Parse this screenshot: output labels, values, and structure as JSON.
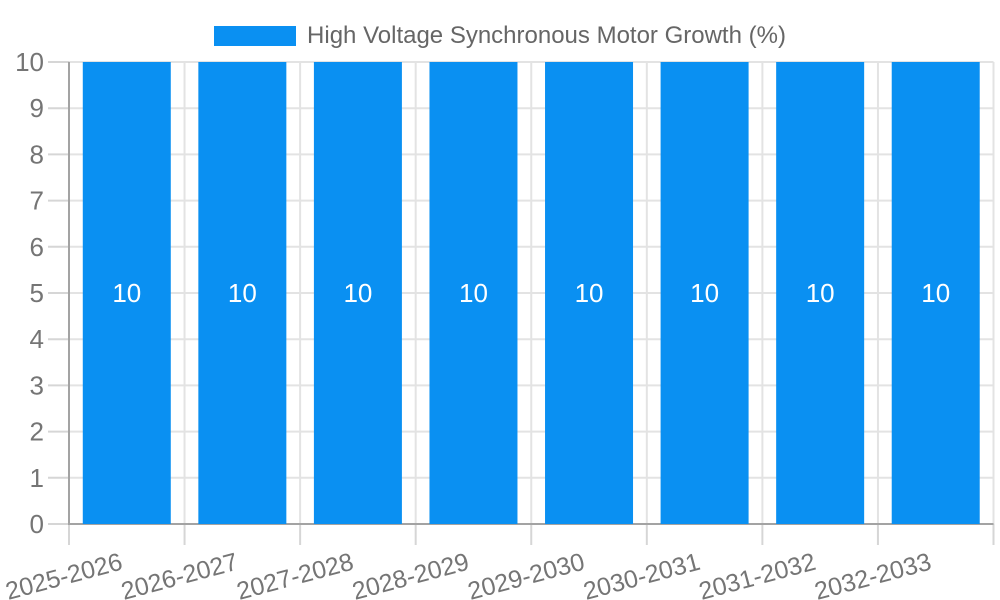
{
  "chart_data": {
    "type": "bar",
    "title": "",
    "legend_label": "High Voltage Synchronous Motor Growth (%)",
    "legend_position": "top",
    "categories": [
      "2025-2026",
      "2026-2027",
      "2027-2028",
      "2028-2029",
      "2029-2030",
      "2030-2031",
      "2031-2032",
      "2032-2033"
    ],
    "series": [
      {
        "name": "High Voltage Synchronous Motor Growth (%)",
        "values": [
          10,
          10,
          10,
          10,
          10,
          10,
          10,
          10
        ]
      }
    ],
    "bar_value_labels": [
      "10",
      "10",
      "10",
      "10",
      "10",
      "10",
      "10",
      "10"
    ],
    "xlabel": "",
    "ylabel": "",
    "ylim": [
      0,
      10
    ],
    "yticks": [
      0,
      1,
      2,
      3,
      4,
      5,
      6,
      7,
      8,
      9,
      10
    ],
    "grid": true,
    "x_label_rotation_deg": -15,
    "colors": {
      "bar": "#0a90f2",
      "grid": "#e3e3e3",
      "tick": "#d6d6d6",
      "axis": "#a3a3a3",
      "axis_label": "#757575",
      "legend_text": "#666666",
      "value_label": "#ffffff",
      "background": "#ffffff"
    }
  }
}
